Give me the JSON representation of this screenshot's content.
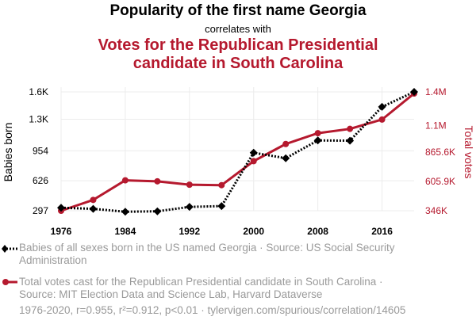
{
  "header": {
    "title": "Popularity of the first name Georgia",
    "subtitle": "correlates with",
    "second_title": "Votes for the Republican Presidential candidate in South Carolina"
  },
  "legend": {
    "series1": "Babies of all sexes born in the US named Georgia · Source: US Social Security Administration",
    "series2": "Total votes cast for the Republican Presidential candidate in South Carolina · Source: MIT Election Data and Science Lab, Harvard Dataverse"
  },
  "footer": "1976-2020, r=0.955, r²=0.912, p<0.01 · tylervigen.com/spurious/correlation/14605",
  "colors": {
    "series1": "#000000",
    "series2": "#b5192e"
  },
  "chart_data": {
    "type": "line",
    "x": [
      1976,
      1980,
      1984,
      1988,
      1992,
      1996,
      2000,
      2004,
      2008,
      2012,
      2016,
      2020
    ],
    "xticks": [
      1976,
      1984,
      1992,
      2000,
      2008,
      2016
    ],
    "xlim": [
      1976,
      2020
    ],
    "series": [
      {
        "name": "Babies born",
        "axis": "left",
        "marker": "diamond",
        "style": "dotted",
        "values": [
          330,
          318,
          286,
          291,
          339,
          348,
          933,
          873,
          1068,
          1065,
          1436,
          1600
        ]
      },
      {
        "name": "Total votes",
        "axis": "right",
        "marker": "circle",
        "style": "solid",
        "values": [
          346000,
          442000,
          616000,
          607000,
          577000,
          573000,
          786000,
          938000,
          1034000,
          1072000,
          1155000,
          1386000
        ]
      }
    ],
    "left_axis": {
      "label": "Babies born",
      "ylim": [
        297,
        1600
      ],
      "ticks": [
        297,
        626,
        954,
        1300,
        1600
      ],
      "tick_labels": [
        "297",
        "626",
        "954",
        "1.3K",
        "1.6K"
      ]
    },
    "right_axis": {
      "label": "Total votes",
      "ylim": [
        346000,
        1400000
      ],
      "ticks": [
        346000,
        605900,
        865600,
        1100000,
        1400000
      ],
      "tick_labels": [
        "346K",
        "605.9K",
        "865.6K",
        "1.1M",
        "1.4M"
      ]
    },
    "grid": true
  }
}
